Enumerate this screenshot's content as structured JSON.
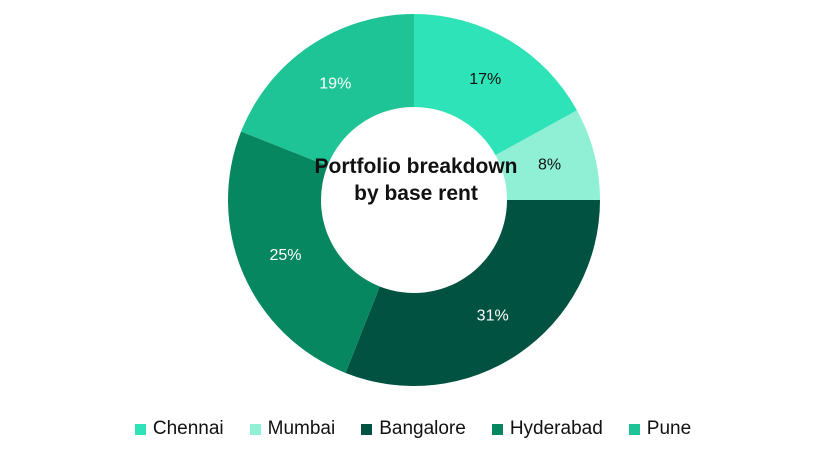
{
  "chart_data": {
    "type": "pie",
    "title": "Portfolio breakdown by base rent",
    "categories": [
      "Chennai",
      "Mumbai",
      "Bangalore",
      "Hyderabad",
      "Pune"
    ],
    "values": [
      17,
      8,
      31,
      25,
      19
    ],
    "value_labels": [
      "17%",
      "8%",
      "31%",
      "25%",
      "19%"
    ],
    "colors": [
      "#2ee3b7",
      "#8ff0d6",
      "#025241",
      "#07875f",
      "#1ec496"
    ],
    "label_colors": [
      "#111111",
      "#111111",
      "#ffffff",
      "#ffffff",
      "#ffffff"
    ],
    "donut": true,
    "legend_position": "bottom"
  }
}
